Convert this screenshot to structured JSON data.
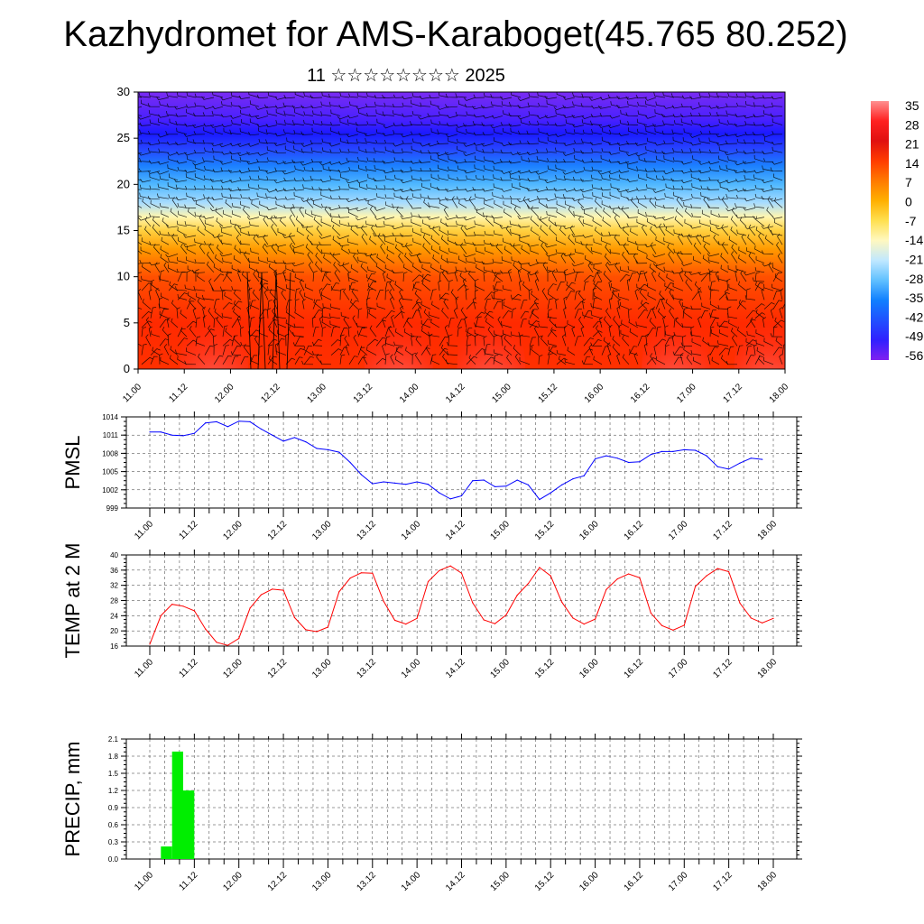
{
  "title": "Kazhydromet for AMS-Karaboget(45.765 80.252)",
  "subtitle": "11 ☆☆☆☆☆☆☆☆ 2025",
  "colors": {
    "pmsl_line": "#0000ff",
    "temp_line": "#ff0000",
    "precip_bar": "#00ee00",
    "wind_barb": "#000000"
  },
  "chart_data": [
    {
      "type": "heatmap",
      "name": "vertical profile",
      "ylim": [
        0,
        30
      ],
      "yticks": [
        "0",
        "5",
        "10",
        "15",
        "20",
        "25",
        "30"
      ],
      "xticks": [
        "11.00",
        "11.12",
        "12.00",
        "12.12",
        "13.00",
        "13.12",
        "14.00",
        "14.12",
        "15.00",
        "15.12",
        "16.00",
        "16.12",
        "17.00",
        "17.12",
        "18.00"
      ],
      "colorbar": {
        "labels": [
          "35",
          "28",
          "21",
          "14",
          "7",
          "0",
          "-7",
          "-14",
          "-21",
          "-28",
          "-35",
          "-42",
          "-49",
          "-56"
        ],
        "colors": [
          "#ff9090",
          "#ff2020",
          "#e01010",
          "#ff3c00",
          "#ff7a00",
          "#ffb000",
          "#ffe050",
          "#fff8c0",
          "#c0e8ff",
          "#60c0ff",
          "#1080ff",
          "#2050ff",
          "#3020ff",
          "#8020f0"
        ]
      },
      "profile": [
        {
          "level": 0,
          "color": "#ff3000"
        },
        {
          "level": 5,
          "color": "#ff2a00"
        },
        {
          "level": 10,
          "color": "#ff5000"
        },
        {
          "level": 13,
          "color": "#ff9a00"
        },
        {
          "level": 15,
          "color": "#ffd040"
        },
        {
          "level": 16.5,
          "color": "#fff6b0"
        },
        {
          "level": 18,
          "color": "#a8dcff"
        },
        {
          "level": 20,
          "color": "#50b8ff"
        },
        {
          "level": 22,
          "color": "#1c80ff"
        },
        {
          "level": 24,
          "color": "#2640ff"
        },
        {
          "level": 25.5,
          "color": "#1a1aff"
        },
        {
          "level": 27,
          "color": "#4820ff"
        },
        {
          "level": 30,
          "color": "#7a2cf2"
        }
      ],
      "hot_spots": [
        0.82,
        2.82,
        3.82,
        5.82,
        6.82
      ],
      "wind_barbs": "dense black barbs across the field"
    },
    {
      "type": "line",
      "name": "PMSL",
      "ylabel": "PMSL",
      "ylim": [
        999,
        1014
      ],
      "yticks": [
        "999",
        "1002",
        "1005",
        "1008",
        "1011",
        "1014"
      ],
      "xticks": [
        "11.00",
        "11.12",
        "12.00",
        "12.12",
        "13.00",
        "13.12",
        "14.00",
        "14.12",
        "15.00",
        "15.12",
        "16.00",
        "16.12",
        "17.00",
        "17.12",
        "18.00"
      ],
      "x_step_days": 0.125,
      "values": [
        1011.5,
        1011.5,
        1011.0,
        1010.9,
        1011.3,
        1013.0,
        1013.2,
        1012.4,
        1013.3,
        1013.2,
        1012.0,
        1011.0,
        1010.0,
        1010.6,
        1009.9,
        1008.8,
        1008.6,
        1008.2,
        1006.5,
        1004.5,
        1003.0,
        1003.3,
        1003.1,
        1002.9,
        1003.3,
        1002.9,
        1001.5,
        1000.5,
        1001.0,
        1003.5,
        1003.6,
        1002.5,
        1002.6,
        1003.6,
        1002.8,
        1000.4,
        1001.5,
        1002.8,
        1003.8,
        1004.3,
        1007.1,
        1007.6,
        1007.2,
        1006.5,
        1006.6,
        1007.8,
        1008.3,
        1008.3,
        1008.6,
        1008.5,
        1007.6,
        1005.8,
        1005.4,
        1006.4,
        1007.2,
        1007.0
      ]
    },
    {
      "type": "line",
      "name": "TEMP at 2 M",
      "ylabel": "TEMP at 2 M",
      "ylim": [
        16,
        40
      ],
      "yticks": [
        "16",
        "20",
        "24",
        "28",
        "32",
        "36",
        "40"
      ],
      "xticks": [
        "11.00",
        "11.12",
        "12.00",
        "12.12",
        "13.00",
        "13.12",
        "14.00",
        "14.12",
        "15.00",
        "15.12",
        "16.00",
        "16.12",
        "17.00",
        "17.12",
        "18.00"
      ],
      "x_step_days": 0.125,
      "values": [
        16.5,
        24.0,
        27.0,
        26.5,
        25.3,
        20.5,
        17.0,
        16.2,
        18.0,
        26.0,
        29.5,
        31.0,
        30.7,
        23.5,
        20.3,
        19.8,
        21.0,
        30.3,
        33.9,
        35.3,
        35.2,
        27.8,
        22.8,
        21.8,
        23.3,
        33.0,
        35.9,
        37.1,
        35.2,
        27.4,
        22.9,
        21.9,
        24.2,
        29.4,
        32.5,
        36.7,
        34.5,
        27.6,
        23.4,
        21.8,
        23.1,
        30.9,
        33.7,
        35.0,
        34.0,
        24.7,
        21.4,
        20.2,
        21.5,
        31.7,
        34.5,
        36.4,
        35.6,
        27.3,
        23.4,
        22.1,
        23.3
      ]
    },
    {
      "type": "bar",
      "name": "PRECIP, mm",
      "ylabel": "PRECIP, mm",
      "ylim": [
        0,
        2.1
      ],
      "yticks": [
        "0.0",
        "0.3",
        "0.6",
        "0.9",
        "1.2",
        "1.5",
        "1.8",
        "2.1"
      ],
      "xticks": [
        "11.00",
        "11.12",
        "12.00",
        "12.12",
        "13.00",
        "13.12",
        "14.00",
        "14.12",
        "15.00",
        "15.12",
        "16.00",
        "16.12",
        "17.00",
        "17.12",
        "18.00"
      ],
      "bar_width_days": 0.125,
      "bars": [
        {
          "start": 0.125,
          "value": 0.22
        },
        {
          "start": 0.25,
          "value": 1.88
        },
        {
          "start": 0.375,
          "value": 1.2
        }
      ]
    }
  ]
}
